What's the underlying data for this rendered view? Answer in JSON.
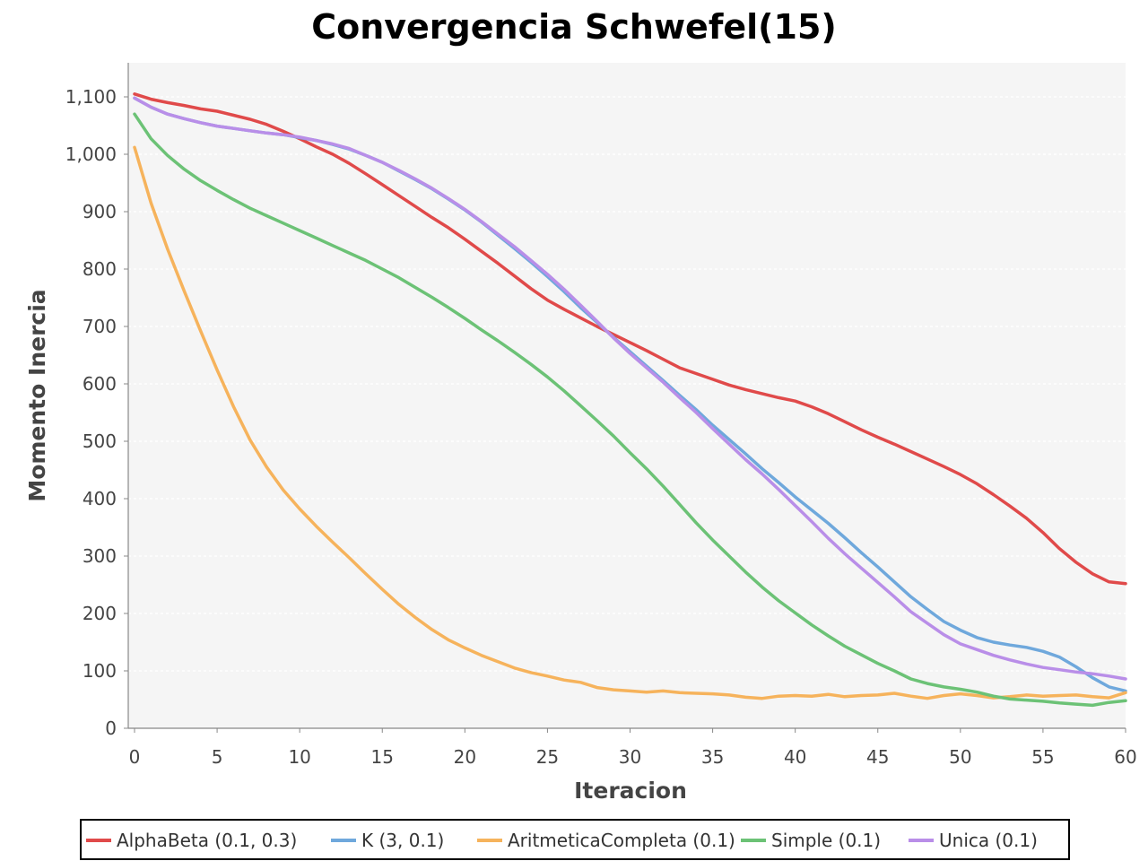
{
  "chart_data": {
    "type": "line",
    "title": "Convergencia Schwefel(15)",
    "xlabel": "Iteracion",
    "ylabel": "Momento Inercia",
    "xlim": [
      0,
      60
    ],
    "ylim": [
      0,
      1160
    ],
    "x_ticks": [
      0,
      5,
      10,
      15,
      20,
      25,
      30,
      35,
      40,
      45,
      50,
      55,
      60
    ],
    "y_ticks": [
      0,
      100,
      200,
      300,
      400,
      500,
      600,
      700,
      800,
      900,
      1000,
      1100
    ],
    "y_tick_labels": [
      "0",
      "100",
      "200",
      "300",
      "400",
      "500",
      "600",
      "700",
      "800",
      "900",
      "1,000",
      "1,100"
    ],
    "grid": true,
    "legend_position": "bottom",
    "background_color": "#f5f5f5",
    "series": [
      {
        "name": "AlphaBeta (0.1, 0.3)",
        "color": "#e04a4a",
        "x": [
          0,
          1,
          2,
          3,
          4,
          5,
          6,
          7,
          8,
          9,
          10,
          11,
          12,
          13,
          14,
          15,
          16,
          17,
          18,
          19,
          20,
          21,
          22,
          23,
          24,
          25,
          26,
          27,
          28,
          29,
          30,
          31,
          32,
          33,
          34,
          35,
          36,
          37,
          38,
          39,
          40,
          41,
          42,
          43,
          44,
          45,
          46,
          47,
          48,
          49,
          50,
          51,
          52,
          53,
          54,
          55,
          56,
          57,
          58,
          59,
          60
        ],
        "y": [
          1105,
          1096,
          1090,
          1085,
          1079,
          1075,
          1068,
          1061,
          1052,
          1040,
          1027,
          1013,
          1000,
          984,
          966,
          947,
          928,
          909,
          890,
          872,
          852,
          831,
          810,
          788,
          766,
          746,
          730,
          715,
          700,
          686,
          672,
          658,
          643,
          628,
          618,
          608,
          598,
          590,
          583,
          576,
          570,
          560,
          548,
          534,
          520,
          507,
          495,
          482,
          469,
          456,
          442,
          426,
          407,
          387,
          366,
          341,
          313,
          289,
          269,
          255,
          252
        ]
      },
      {
        "name": "K (3, 0.1)",
        "color": "#6fa8dc",
        "x": [
          0,
          1,
          2,
          3,
          4,
          5,
          6,
          7,
          8,
          9,
          10,
          11,
          12,
          13,
          14,
          15,
          16,
          17,
          18,
          19,
          20,
          21,
          22,
          23,
          24,
          25,
          26,
          27,
          28,
          29,
          30,
          31,
          32,
          33,
          34,
          35,
          36,
          37,
          38,
          39,
          40,
          41,
          42,
          43,
          44,
          45,
          46,
          47,
          48,
          49,
          50,
          51,
          52,
          53,
          54,
          55,
          56,
          57,
          58,
          59,
          60
        ],
        "y": [
          1098,
          1082,
          1070,
          1062,
          1055,
          1049,
          1045,
          1041,
          1037,
          1034,
          1029,
          1024,
          1017,
          1009,
          998,
          986,
          971,
          956,
          940,
          922,
          903,
          882,
          859,
          836,
          812,
          787,
          761,
          733,
          707,
          681,
          656,
          631,
          606,
          580,
          555,
          528,
          503,
          478,
          452,
          428,
          403,
          380,
          357,
          332,
          306,
          281,
          255,
          229,
          207,
          186,
          171,
          158,
          150,
          145,
          141,
          134,
          124,
          107,
          88,
          72,
          65
        ]
      },
      {
        "name": "AritmeticaCompleta (0.1)",
        "color": "#f6b35c",
        "x": [
          0,
          1,
          2,
          3,
          4,
          5,
          6,
          7,
          8,
          9,
          10,
          11,
          12,
          13,
          14,
          15,
          16,
          17,
          18,
          19,
          20,
          21,
          22,
          23,
          24,
          25,
          26,
          27,
          28,
          29,
          30,
          31,
          32,
          33,
          34,
          35,
          36,
          37,
          38,
          39,
          40,
          41,
          42,
          43,
          44,
          45,
          46,
          47,
          48,
          49,
          50,
          51,
          52,
          53,
          54,
          55,
          56,
          57,
          58,
          59,
          60
        ],
        "y": [
          1012,
          915,
          835,
          762,
          692,
          624,
          560,
          502,
          455,
          415,
          382,
          352,
          324,
          297,
          269,
          242,
          216,
          193,
          172,
          154,
          140,
          127,
          116,
          105,
          97,
          91,
          84,
          80,
          71,
          67,
          65,
          63,
          65,
          62,
          61,
          60,
          58,
          54,
          52,
          56,
          57,
          56,
          59,
          55,
          57,
          58,
          61,
          56,
          52,
          57,
          60,
          57,
          53,
          55,
          58,
          56,
          57,
          58,
          55,
          53,
          62
        ]
      },
      {
        "name": "Simple (0.1)",
        "color": "#6cc276",
        "x": [
          0,
          1,
          2,
          3,
          4,
          5,
          6,
          7,
          8,
          9,
          10,
          11,
          12,
          13,
          14,
          15,
          16,
          17,
          18,
          19,
          20,
          21,
          22,
          23,
          24,
          25,
          26,
          27,
          28,
          29,
          30,
          31,
          32,
          33,
          34,
          35,
          36,
          37,
          38,
          39,
          40,
          41,
          42,
          43,
          44,
          45,
          46,
          47,
          48,
          49,
          50,
          51,
          52,
          53,
          54,
          55,
          56,
          57,
          58,
          59,
          60
        ],
        "y": [
          1070,
          1027,
          998,
          974,
          954,
          937,
          921,
          906,
          893,
          880,
          867,
          854,
          841,
          828,
          815,
          800,
          785,
          768,
          751,
          733,
          714,
          694,
          675,
          655,
          634,
          612,
          588,
          562,
          536,
          509,
          480,
          452,
          422,
          390,
          358,
          328,
          300,
          272,
          246,
          222,
          201,
          180,
          161,
          143,
          128,
          113,
          100,
          86,
          78,
          72,
          68,
          63,
          56,
          51,
          49,
          47,
          44,
          42,
          40,
          45,
          48
        ]
      },
      {
        "name": "Unica (0.1)",
        "color": "#b98ee8",
        "x": [
          0,
          1,
          2,
          3,
          4,
          5,
          6,
          7,
          8,
          9,
          10,
          11,
          12,
          13,
          14,
          15,
          16,
          17,
          18,
          19,
          20,
          21,
          22,
          23,
          24,
          25,
          26,
          27,
          28,
          29,
          30,
          31,
          32,
          33,
          34,
          35,
          36,
          37,
          38,
          39,
          40,
          41,
          42,
          43,
          44,
          45,
          46,
          47,
          48,
          49,
          50,
          51,
          52,
          53,
          54,
          55,
          56,
          57,
          58,
          59,
          60
        ],
        "y": [
          1098,
          1082,
          1070,
          1062,
          1055,
          1049,
          1045,
          1041,
          1037,
          1034,
          1030,
          1024,
          1018,
          1010,
          998,
          986,
          972,
          957,
          941,
          923,
          904,
          883,
          861,
          839,
          815,
          791,
          765,
          737,
          709,
          680,
          653,
          628,
          603,
          576,
          550,
          522,
          495,
          468,
          443,
          416,
          388,
          360,
          331,
          304,
          279,
          254,
          229,
          203,
          183,
          163,
          147,
          137,
          127,
          119,
          112,
          106,
          102,
          98,
          95,
          91,
          86
        ]
      }
    ]
  }
}
